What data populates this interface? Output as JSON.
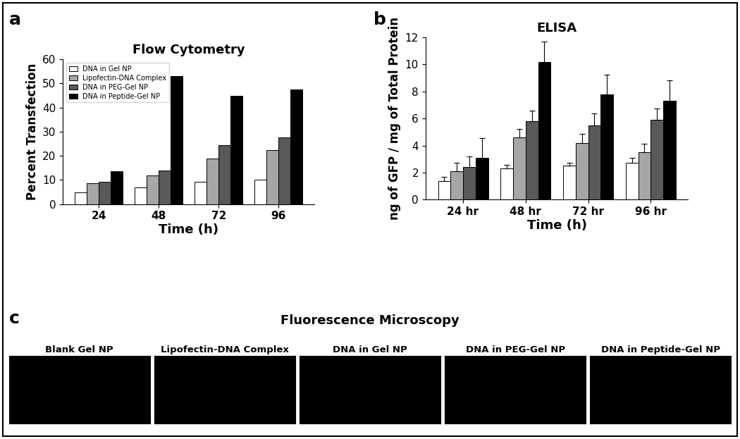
{
  "chart_data": [
    {
      "type": "bar",
      "panel_label": "a",
      "title": "Flow Cytometry",
      "x_label": "Time (h)",
      "y_label": "Percent Transfection",
      "categories": [
        "24",
        "48",
        "72",
        "96"
      ],
      "series": [
        {
          "name": "DNA in Gel NP",
          "color": "#ffffff",
          "values": [
            5,
            7,
            9.2,
            10
          ]
        },
        {
          "name": "Lipofectin-DNA Complex",
          "color": "#a6a6a6",
          "values": [
            8.8,
            12,
            18.8,
            22.3
          ]
        },
        {
          "name": "DNA in PEG-Gel NP",
          "color": "#595959",
          "values": [
            9.2,
            14,
            24.5,
            27.5
          ]
        },
        {
          "name": "DNA in Peptide-Gel NP",
          "color": "#000000",
          "values": [
            13.7,
            53,
            45,
            47.5
          ]
        }
      ],
      "ylim": [
        0,
        60
      ],
      "yticks": [
        0,
        10,
        20,
        30,
        40,
        50,
        60
      ],
      "legend": "upper left"
    },
    {
      "type": "bar",
      "panel_label": "b",
      "title": "ELISA",
      "x_label": "Time (h)",
      "y_label": "ng of GFP / mg of Total Protein",
      "categories": [
        "24 hr",
        "48 hr",
        "72 hr",
        "96 hr"
      ],
      "series": [
        {
          "color": "#ffffff",
          "values": [
            1.4,
            2.3,
            2.5,
            2.75
          ],
          "errors": [
            0.3,
            0.3,
            0.25,
            0.35
          ]
        },
        {
          "color": "#a6a6a6",
          "values": [
            2.1,
            4.6,
            4.2,
            3.5
          ],
          "errors": [
            0.65,
            0.65,
            0.65,
            0.65
          ]
        },
        {
          "color": "#595959",
          "values": [
            2.4,
            5.8,
            5.5,
            5.9
          ],
          "errors": [
            0.8,
            0.8,
            0.85,
            0.85
          ]
        },
        {
          "color": "#000000",
          "values": [
            3.1,
            10.2,
            7.8,
            7.3
          ],
          "errors": [
            1.45,
            1.5,
            1.45,
            1.5
          ]
        }
      ],
      "ylim": [
        0,
        12
      ],
      "yticks": [
        0,
        2,
        4,
        6,
        8,
        10,
        12
      ]
    }
  ],
  "images": {
    "panel_label": "c",
    "title": "Fluorescence Microscopy",
    "labels": [
      "Blank Gel NP",
      "Lipofectin-DNA Complex",
      "DNA in Gel NP",
      "DNA in PEG-Gel NP",
      "DNA in Peptide-Gel NP"
    ]
  }
}
